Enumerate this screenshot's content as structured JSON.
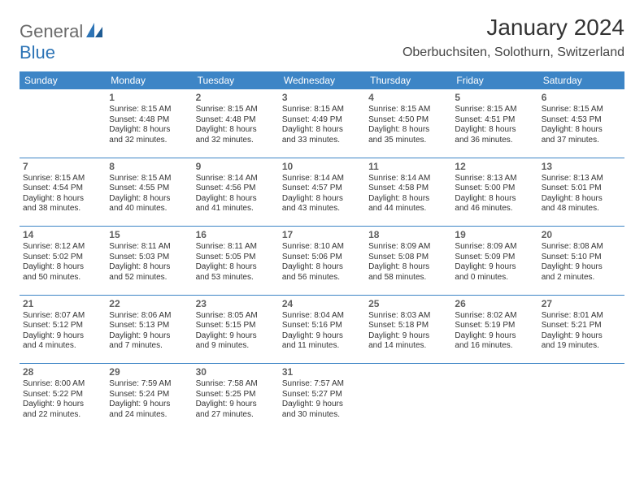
{
  "brand": {
    "part1": "General",
    "part2": "Blue"
  },
  "title": "January 2024",
  "location": "Oberbuchsiten, Solothurn, Switzerland",
  "colors": {
    "header_bg": "#3d85c6",
    "header_fg": "#ffffff",
    "rule": "#3d85c6",
    "logo_gray": "#6a6a6a",
    "logo_blue": "#2d74b6",
    "text": "#333333"
  },
  "weekdays": [
    "Sunday",
    "Monday",
    "Tuesday",
    "Wednesday",
    "Thursday",
    "Friday",
    "Saturday"
  ],
  "weeks": [
    [
      {},
      {
        "n": "1",
        "sr": "Sunrise: 8:15 AM",
        "ss": "Sunset: 4:48 PM",
        "d1": "Daylight: 8 hours",
        "d2": "and 32 minutes."
      },
      {
        "n": "2",
        "sr": "Sunrise: 8:15 AM",
        "ss": "Sunset: 4:48 PM",
        "d1": "Daylight: 8 hours",
        "d2": "and 32 minutes."
      },
      {
        "n": "3",
        "sr": "Sunrise: 8:15 AM",
        "ss": "Sunset: 4:49 PM",
        "d1": "Daylight: 8 hours",
        "d2": "and 33 minutes."
      },
      {
        "n": "4",
        "sr": "Sunrise: 8:15 AM",
        "ss": "Sunset: 4:50 PM",
        "d1": "Daylight: 8 hours",
        "d2": "and 35 minutes."
      },
      {
        "n": "5",
        "sr": "Sunrise: 8:15 AM",
        "ss": "Sunset: 4:51 PM",
        "d1": "Daylight: 8 hours",
        "d2": "and 36 minutes."
      },
      {
        "n": "6",
        "sr": "Sunrise: 8:15 AM",
        "ss": "Sunset: 4:53 PM",
        "d1": "Daylight: 8 hours",
        "d2": "and 37 minutes."
      }
    ],
    [
      {
        "n": "7",
        "sr": "Sunrise: 8:15 AM",
        "ss": "Sunset: 4:54 PM",
        "d1": "Daylight: 8 hours",
        "d2": "and 38 minutes."
      },
      {
        "n": "8",
        "sr": "Sunrise: 8:15 AM",
        "ss": "Sunset: 4:55 PM",
        "d1": "Daylight: 8 hours",
        "d2": "and 40 minutes."
      },
      {
        "n": "9",
        "sr": "Sunrise: 8:14 AM",
        "ss": "Sunset: 4:56 PM",
        "d1": "Daylight: 8 hours",
        "d2": "and 41 minutes."
      },
      {
        "n": "10",
        "sr": "Sunrise: 8:14 AM",
        "ss": "Sunset: 4:57 PM",
        "d1": "Daylight: 8 hours",
        "d2": "and 43 minutes."
      },
      {
        "n": "11",
        "sr": "Sunrise: 8:14 AM",
        "ss": "Sunset: 4:58 PM",
        "d1": "Daylight: 8 hours",
        "d2": "and 44 minutes."
      },
      {
        "n": "12",
        "sr": "Sunrise: 8:13 AM",
        "ss": "Sunset: 5:00 PM",
        "d1": "Daylight: 8 hours",
        "d2": "and 46 minutes."
      },
      {
        "n": "13",
        "sr": "Sunrise: 8:13 AM",
        "ss": "Sunset: 5:01 PM",
        "d1": "Daylight: 8 hours",
        "d2": "and 48 minutes."
      }
    ],
    [
      {
        "n": "14",
        "sr": "Sunrise: 8:12 AM",
        "ss": "Sunset: 5:02 PM",
        "d1": "Daylight: 8 hours",
        "d2": "and 50 minutes."
      },
      {
        "n": "15",
        "sr": "Sunrise: 8:11 AM",
        "ss": "Sunset: 5:03 PM",
        "d1": "Daylight: 8 hours",
        "d2": "and 52 minutes."
      },
      {
        "n": "16",
        "sr": "Sunrise: 8:11 AM",
        "ss": "Sunset: 5:05 PM",
        "d1": "Daylight: 8 hours",
        "d2": "and 53 minutes."
      },
      {
        "n": "17",
        "sr": "Sunrise: 8:10 AM",
        "ss": "Sunset: 5:06 PM",
        "d1": "Daylight: 8 hours",
        "d2": "and 56 minutes."
      },
      {
        "n": "18",
        "sr": "Sunrise: 8:09 AM",
        "ss": "Sunset: 5:08 PM",
        "d1": "Daylight: 8 hours",
        "d2": "and 58 minutes."
      },
      {
        "n": "19",
        "sr": "Sunrise: 8:09 AM",
        "ss": "Sunset: 5:09 PM",
        "d1": "Daylight: 9 hours",
        "d2": "and 0 minutes."
      },
      {
        "n": "20",
        "sr": "Sunrise: 8:08 AM",
        "ss": "Sunset: 5:10 PM",
        "d1": "Daylight: 9 hours",
        "d2": "and 2 minutes."
      }
    ],
    [
      {
        "n": "21",
        "sr": "Sunrise: 8:07 AM",
        "ss": "Sunset: 5:12 PM",
        "d1": "Daylight: 9 hours",
        "d2": "and 4 minutes."
      },
      {
        "n": "22",
        "sr": "Sunrise: 8:06 AM",
        "ss": "Sunset: 5:13 PM",
        "d1": "Daylight: 9 hours",
        "d2": "and 7 minutes."
      },
      {
        "n": "23",
        "sr": "Sunrise: 8:05 AM",
        "ss": "Sunset: 5:15 PM",
        "d1": "Daylight: 9 hours",
        "d2": "and 9 minutes."
      },
      {
        "n": "24",
        "sr": "Sunrise: 8:04 AM",
        "ss": "Sunset: 5:16 PM",
        "d1": "Daylight: 9 hours",
        "d2": "and 11 minutes."
      },
      {
        "n": "25",
        "sr": "Sunrise: 8:03 AM",
        "ss": "Sunset: 5:18 PM",
        "d1": "Daylight: 9 hours",
        "d2": "and 14 minutes."
      },
      {
        "n": "26",
        "sr": "Sunrise: 8:02 AM",
        "ss": "Sunset: 5:19 PM",
        "d1": "Daylight: 9 hours",
        "d2": "and 16 minutes."
      },
      {
        "n": "27",
        "sr": "Sunrise: 8:01 AM",
        "ss": "Sunset: 5:21 PM",
        "d1": "Daylight: 9 hours",
        "d2": "and 19 minutes."
      }
    ],
    [
      {
        "n": "28",
        "sr": "Sunrise: 8:00 AM",
        "ss": "Sunset: 5:22 PM",
        "d1": "Daylight: 9 hours",
        "d2": "and 22 minutes."
      },
      {
        "n": "29",
        "sr": "Sunrise: 7:59 AM",
        "ss": "Sunset: 5:24 PM",
        "d1": "Daylight: 9 hours",
        "d2": "and 24 minutes."
      },
      {
        "n": "30",
        "sr": "Sunrise: 7:58 AM",
        "ss": "Sunset: 5:25 PM",
        "d1": "Daylight: 9 hours",
        "d2": "and 27 minutes."
      },
      {
        "n": "31",
        "sr": "Sunrise: 7:57 AM",
        "ss": "Sunset: 5:27 PM",
        "d1": "Daylight: 9 hours",
        "d2": "and 30 minutes."
      },
      {},
      {},
      {}
    ]
  ]
}
